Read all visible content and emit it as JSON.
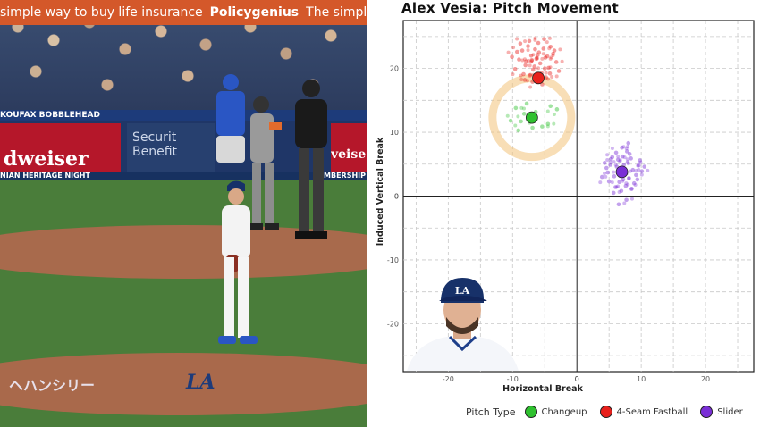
{
  "photo": {
    "ad_text": "simple way to buy life insurance",
    "ad_brand": "Policygenius",
    "ad_text_2": "The simple way to buy",
    "banner_text": "KOUFAX BOBBLEHEAD",
    "wall_left": "dweiser",
    "wall_sponsor_line1": "Securit",
    "wall_sponsor_line2": "Benefit",
    "wall_right": "veise",
    "wall_strip": "NIAN HERITAGE NIGHT",
    "wall_strip_right": "MBERSHIP",
    "mound_text": "ヘハンシリー",
    "mound_logo": "LA"
  },
  "chart_data": {
    "type": "scatter",
    "title": "Alex Vesia: Pitch Movement",
    "xlabel": "Horizontal Break",
    "ylabel": "Induced Vertical Break",
    "xlim": [
      -27,
      27.5
    ],
    "ylim": [
      -27.5,
      27.5
    ],
    "xticks": [
      -20,
      -10,
      0,
      10,
      20
    ],
    "yticks": [
      -20,
      -10,
      0,
      10,
      20
    ],
    "grid": true,
    "legend_title": "Pitch Type",
    "legend_position": "bottom",
    "series": [
      {
        "name": "Changeup",
        "color": "#2fc12f",
        "mean": [
          -7,
          12.3
        ],
        "points": [
          [
            -9.5,
            13.8
          ],
          [
            -8.7,
            11.7
          ],
          [
            -6.4,
            13.2
          ],
          [
            -4.5,
            11.3
          ],
          [
            -10.3,
            11.8
          ],
          [
            -7.8,
            14.5
          ],
          [
            -5.4,
            10.9
          ],
          [
            -9.1,
            10.3
          ],
          [
            -3.1,
            13.6
          ],
          [
            -8.2,
            12.9
          ],
          [
            -6.9,
            10.7
          ],
          [
            -4.1,
            14.1
          ]
        ]
      },
      {
        "name": "4-Seam Fastball",
        "color": "#e8201c",
        "mean": [
          -6,
          18.5
        ],
        "points": [
          [
            -6.3,
            21.5
          ],
          [
            -5.7,
            20.8
          ],
          [
            -7.1,
            22.0
          ],
          [
            -4.9,
            21.7
          ],
          [
            -8.0,
            20.5
          ],
          [
            -6.8,
            19.8
          ],
          [
            -5.2,
            23.1
          ],
          [
            -7.6,
            23.5
          ],
          [
            -4.4,
            20.1
          ],
          [
            -9.0,
            21.4
          ],
          [
            -6.0,
            24.0
          ],
          [
            -3.7,
            22.3
          ],
          [
            -8.5,
            22.8
          ],
          [
            -5.5,
            19.3
          ],
          [
            -7.3,
            18.9
          ],
          [
            -4.8,
            18.6
          ],
          [
            -6.6,
            20.3
          ],
          [
            -9.6,
            19.9
          ],
          [
            -3.2,
            21.0
          ],
          [
            -8.8,
            23.9
          ],
          [
            -5.9,
            22.5
          ],
          [
            -7.9,
            21.1
          ],
          [
            -4.1,
            23.4
          ],
          [
            -6.9,
            17.9
          ],
          [
            -5.1,
            24.6
          ],
          [
            -10.1,
            21.8
          ],
          [
            -2.8,
            19.6
          ],
          [
            -7.4,
            24.3
          ],
          [
            -6.2,
            18.3
          ],
          [
            -8.3,
            19.1
          ],
          [
            -4.6,
            21.9
          ],
          [
            -5.4,
            17.5
          ],
          [
            -7.0,
            21.3
          ],
          [
            -3.5,
            22.8
          ],
          [
            -9.3,
            22.6
          ],
          [
            -6.5,
            23.0
          ],
          [
            -5.0,
            20.0
          ],
          [
            -8.1,
            18.2
          ],
          [
            -4.2,
            19.2
          ],
          [
            -6.1,
            22.1
          ]
        ]
      },
      {
        "name": "Slider",
        "color": "#7a2fd6",
        "mean": [
          7,
          3.8
        ],
        "points": [
          [
            7.4,
            3.9
          ],
          [
            6.2,
            4.6
          ],
          [
            8.1,
            2.8
          ],
          [
            5.8,
            3.1
          ],
          [
            7.9,
            5.3
          ],
          [
            6.6,
            2.2
          ],
          [
            8.7,
            4.1
          ],
          [
            5.2,
            4.9
          ],
          [
            7.1,
            6.2
          ],
          [
            9.2,
            3.3
          ],
          [
            6.0,
            1.4
          ],
          [
            8.4,
            5.9
          ],
          [
            4.8,
            3.7
          ],
          [
            7.6,
            1.6
          ],
          [
            9.6,
            4.8
          ],
          [
            5.5,
            6.1
          ],
          [
            6.9,
            0.8
          ],
          [
            8.9,
            2.0
          ],
          [
            4.3,
            5.2
          ],
          [
            7.8,
            7.0
          ],
          [
            6.4,
            5.7
          ],
          [
            10.1,
            3.9
          ],
          [
            5.0,
            2.3
          ],
          [
            8.2,
            6.6
          ],
          [
            6.8,
            3.4
          ],
          [
            7.3,
            4.9
          ],
          [
            9.8,
            5.6
          ],
          [
            5.7,
            0.5
          ],
          [
            8.5,
            1.1
          ],
          [
            4.6,
            4.4
          ],
          [
            7.0,
            7.6
          ],
          [
            6.1,
            6.8
          ],
          [
            9.4,
            2.6
          ],
          [
            7.7,
            -0.6
          ],
          [
            5.3,
            5.8
          ],
          [
            8.0,
            8.3
          ],
          [
            6.5,
            -1.3
          ],
          [
            10.5,
            4.6
          ],
          [
            3.9,
            3.0
          ],
          [
            7.2,
            2.6
          ]
        ]
      }
    ]
  },
  "icons": {
    "headshot": "player-headshot"
  }
}
